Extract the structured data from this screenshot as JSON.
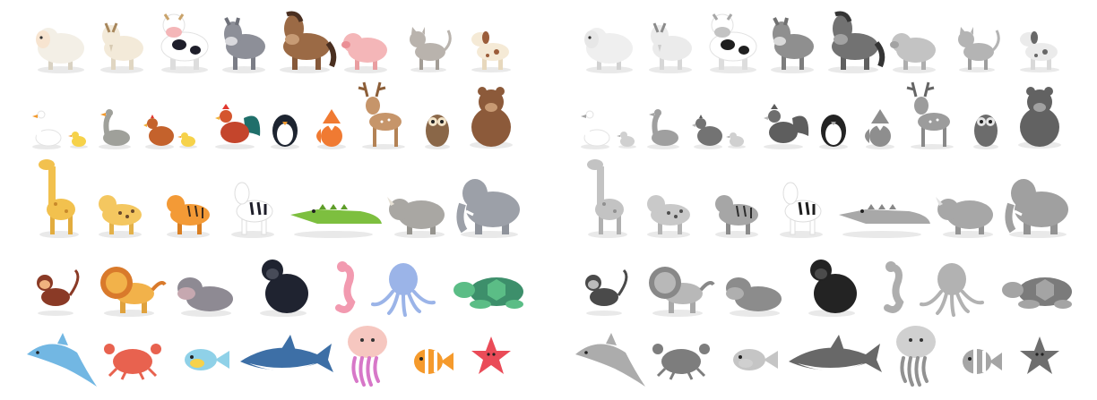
{
  "panels": [
    {
      "key": "color",
      "style": "full-color"
    },
    {
      "key": "gray",
      "style": "grayscale"
    }
  ],
  "rows": [
    [
      "sheep",
      "goat",
      "cow",
      "donkey",
      "horse",
      "pig",
      "cat",
      "dog"
    ],
    [
      "goose",
      "gosling",
      "goose-2",
      "hen",
      "chick",
      "rooster",
      "penguin",
      "fox",
      "deer",
      "owl",
      "bear"
    ],
    [
      "giraffe",
      "leopard",
      "tiger",
      "zebra",
      "crocodile",
      "rhino",
      "elephant"
    ],
    [
      "monkey",
      "lion",
      "hippo",
      "gorilla",
      "seahorse",
      "octopus",
      "turtle"
    ],
    [
      "dolphin",
      "crab",
      "fish",
      "shark",
      "jellyfish",
      "clownfish",
      "starfish"
    ]
  ],
  "colors": {
    "background": "#ffffff",
    "shadow": "#e9e9e9",
    "sheep": "#f3efe6",
    "cow_spots": "#1e1e2a",
    "donkey": "#8d8f98",
    "horse": "#9b6a45",
    "pig": "#f4b6b8",
    "cat": "#b9b3ad",
    "dog": "#f5ead6",
    "chicken": "#c4622c",
    "chick": "#f6d24a",
    "rooster_tail": "#1f6f6a",
    "penguin": "#1d2430",
    "fox": "#f07a32",
    "deer": "#c6956a",
    "owl": "#8a6748",
    "bear": "#8c5a3a",
    "giraffe": "#f2c14e",
    "leopard": "#f4c760",
    "tiger": "#f39a36",
    "zebra": "#ffffff",
    "crocodile": "#7dbf3f",
    "rhino": "#a9a7a3",
    "elephant": "#9ca0a8",
    "monkey": "#8a3a26",
    "lion": "#f2b24a",
    "hippo": "#8e8a93",
    "gorilla": "#1f2330",
    "seahorse": "#f29ab0",
    "octopus": "#9bb4e8",
    "turtle": "#5bbd86",
    "dolphin": "#72b7e3",
    "crab": "#e8624f",
    "fish": "#8fd1e8",
    "shark": "#3d6fa6",
    "jellyfish": "#d777c8",
    "clownfish": "#f59a2c",
    "starfish": "#ea4b58"
  }
}
